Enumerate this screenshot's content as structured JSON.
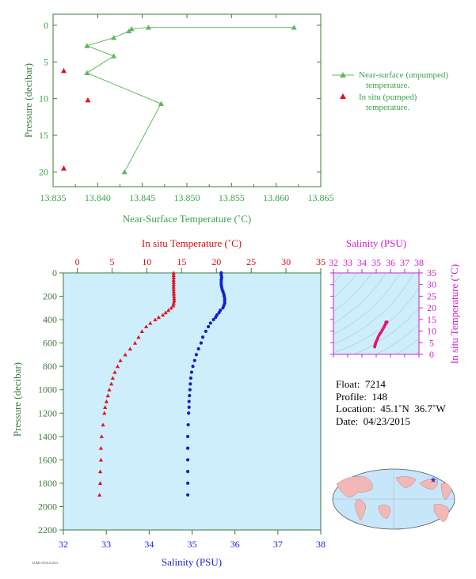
{
  "chart_data": [
    {
      "id": "near_surface",
      "type": "line",
      "xlabel": "Near-Surface Temperature (˚C)",
      "ylabel": "Pressure (decibar)",
      "xlim": [
        13.835,
        13.865
      ],
      "ylim": [
        22,
        -1.5
      ],
      "xticks": [
        "13.835",
        "13.840",
        "13.845",
        "13.850",
        "13.855",
        "13.860",
        "13.865"
      ],
      "yticks": [
        "0",
        "5",
        "10",
        "15",
        "20"
      ],
      "series": [
        {
          "name": "Near-surface (unpumped) temperature.",
          "color": "#5cb85c",
          "marker": "triangle-line",
          "x": [
            13.862,
            13.8457,
            13.8438,
            13.8435,
            13.8418,
            13.8388,
            13.8418,
            13.8388,
            13.8471,
            13.843
          ],
          "y": [
            0.3,
            0.3,
            0.5,
            0.8,
            1.7,
            2.8,
            4.2,
            6.5,
            10.7,
            20.0
          ]
        },
        {
          "name": "In situ (pumped) temperature.",
          "color": "#e0141e",
          "marker": "triangle",
          "x": [
            13.8362,
            13.8389,
            13.8362
          ],
          "y": [
            6.2,
            10.2,
            19.5
          ]
        }
      ],
      "legend": [
        {
          "line1": "Near-surface (unpumped)",
          "line2": "temperature."
        },
        {
          "line1": "In situ (pumped)",
          "line2": "temperature."
        }
      ]
    },
    {
      "id": "profile",
      "type": "scatter",
      "top_label": "In situ Temperature (˚C)",
      "bottom_label": "Salinity (PSU)",
      "ylabel": "Pressure (decibar)",
      "temp_lim": [
        -2,
        35
      ],
      "sal_lim": [
        32,
        38
      ],
      "ylim": [
        0,
        2200
      ],
      "temp_ticks": [
        "0",
        "5",
        "10",
        "15",
        "20",
        "25",
        "30",
        "35"
      ],
      "sal_ticks": [
        "32",
        "33",
        "34",
        "35",
        "36",
        "37",
        "38"
      ],
      "yticks": [
        "0",
        "200",
        "400",
        "600",
        "800",
        "1000",
        "1200",
        "1400",
        "1600",
        "1800",
        "2000",
        "2200"
      ],
      "pressure": [
        0,
        20,
        40,
        60,
        80,
        100,
        120,
        140,
        160,
        180,
        200,
        220,
        240,
        260,
        280,
        300,
        320,
        340,
        360,
        380,
        400,
        430,
        460,
        500,
        550,
        600,
        650,
        700,
        750,
        800,
        850,
        900,
        950,
        1000,
        1050,
        1100,
        1150,
        1200,
        1300,
        1400,
        1500,
        1600,
        1700,
        1800,
        1900
      ],
      "temperature": [
        13.85,
        13.85,
        13.85,
        13.85,
        13.85,
        13.85,
        13.84,
        13.85,
        13.86,
        13.88,
        13.9,
        13.93,
        13.93,
        13.85,
        13.8,
        13.5,
        13.1,
        12.7,
        12.3,
        11.7,
        11.2,
        10.5,
        9.9,
        9.3,
        8.8,
        8.3,
        7.6,
        6.9,
        6.2,
        5.8,
        5.4,
        5.1,
        4.9,
        4.6,
        4.4,
        4.2,
        4.0,
        3.9,
        3.7,
        3.5,
        3.4,
        3.4,
        3.3,
        3.3,
        3.2
      ],
      "salinity": [
        35.68,
        35.68,
        35.69,
        35.68,
        35.68,
        35.68,
        35.69,
        35.7,
        35.72,
        35.74,
        35.75,
        35.76,
        35.76,
        35.76,
        35.74,
        35.72,
        35.66,
        35.63,
        35.58,
        35.55,
        35.5,
        35.43,
        35.38,
        35.32,
        35.25,
        35.21,
        35.15,
        35.1,
        35.06,
        35.02,
        34.99,
        34.97,
        34.96,
        34.95,
        34.94,
        34.93,
        34.93,
        34.92,
        34.91,
        34.9,
        34.9,
        34.9,
        34.9,
        34.9,
        34.9
      ],
      "temp_color": "#e0141e",
      "sal_color": "#1020c8"
    },
    {
      "id": "ts_diagram",
      "type": "scatter",
      "title": "Salinity (PSU)",
      "ylabel": "In situ Temperature (˚C)",
      "xlim": [
        32,
        38
      ],
      "ylim": [
        0,
        35
      ],
      "xticks": [
        "32",
        "33",
        "34",
        "35",
        "36",
        "37",
        "38"
      ],
      "yticks": [
        "0",
        "5",
        "10",
        "15",
        "20",
        "25",
        "30",
        "35"
      ],
      "color": "#cc22cc",
      "point_color": "#e8107a"
    }
  ],
  "info": {
    "float": "Float:  7214",
    "profile": "Profile:  148",
    "location": "Location:  45.1˚N  36.7˚W",
    "date": "Date:  04/23/2015"
  },
  "map": {
    "ocean_color": "#c8e6fa",
    "land_color": "#f2b8b8",
    "marker_color": "#1a33cc"
  },
  "colors": {
    "green": "#5cb85c",
    "axis_green": "#3d7a3d",
    "panel_fill": "#cdeefa"
  }
}
